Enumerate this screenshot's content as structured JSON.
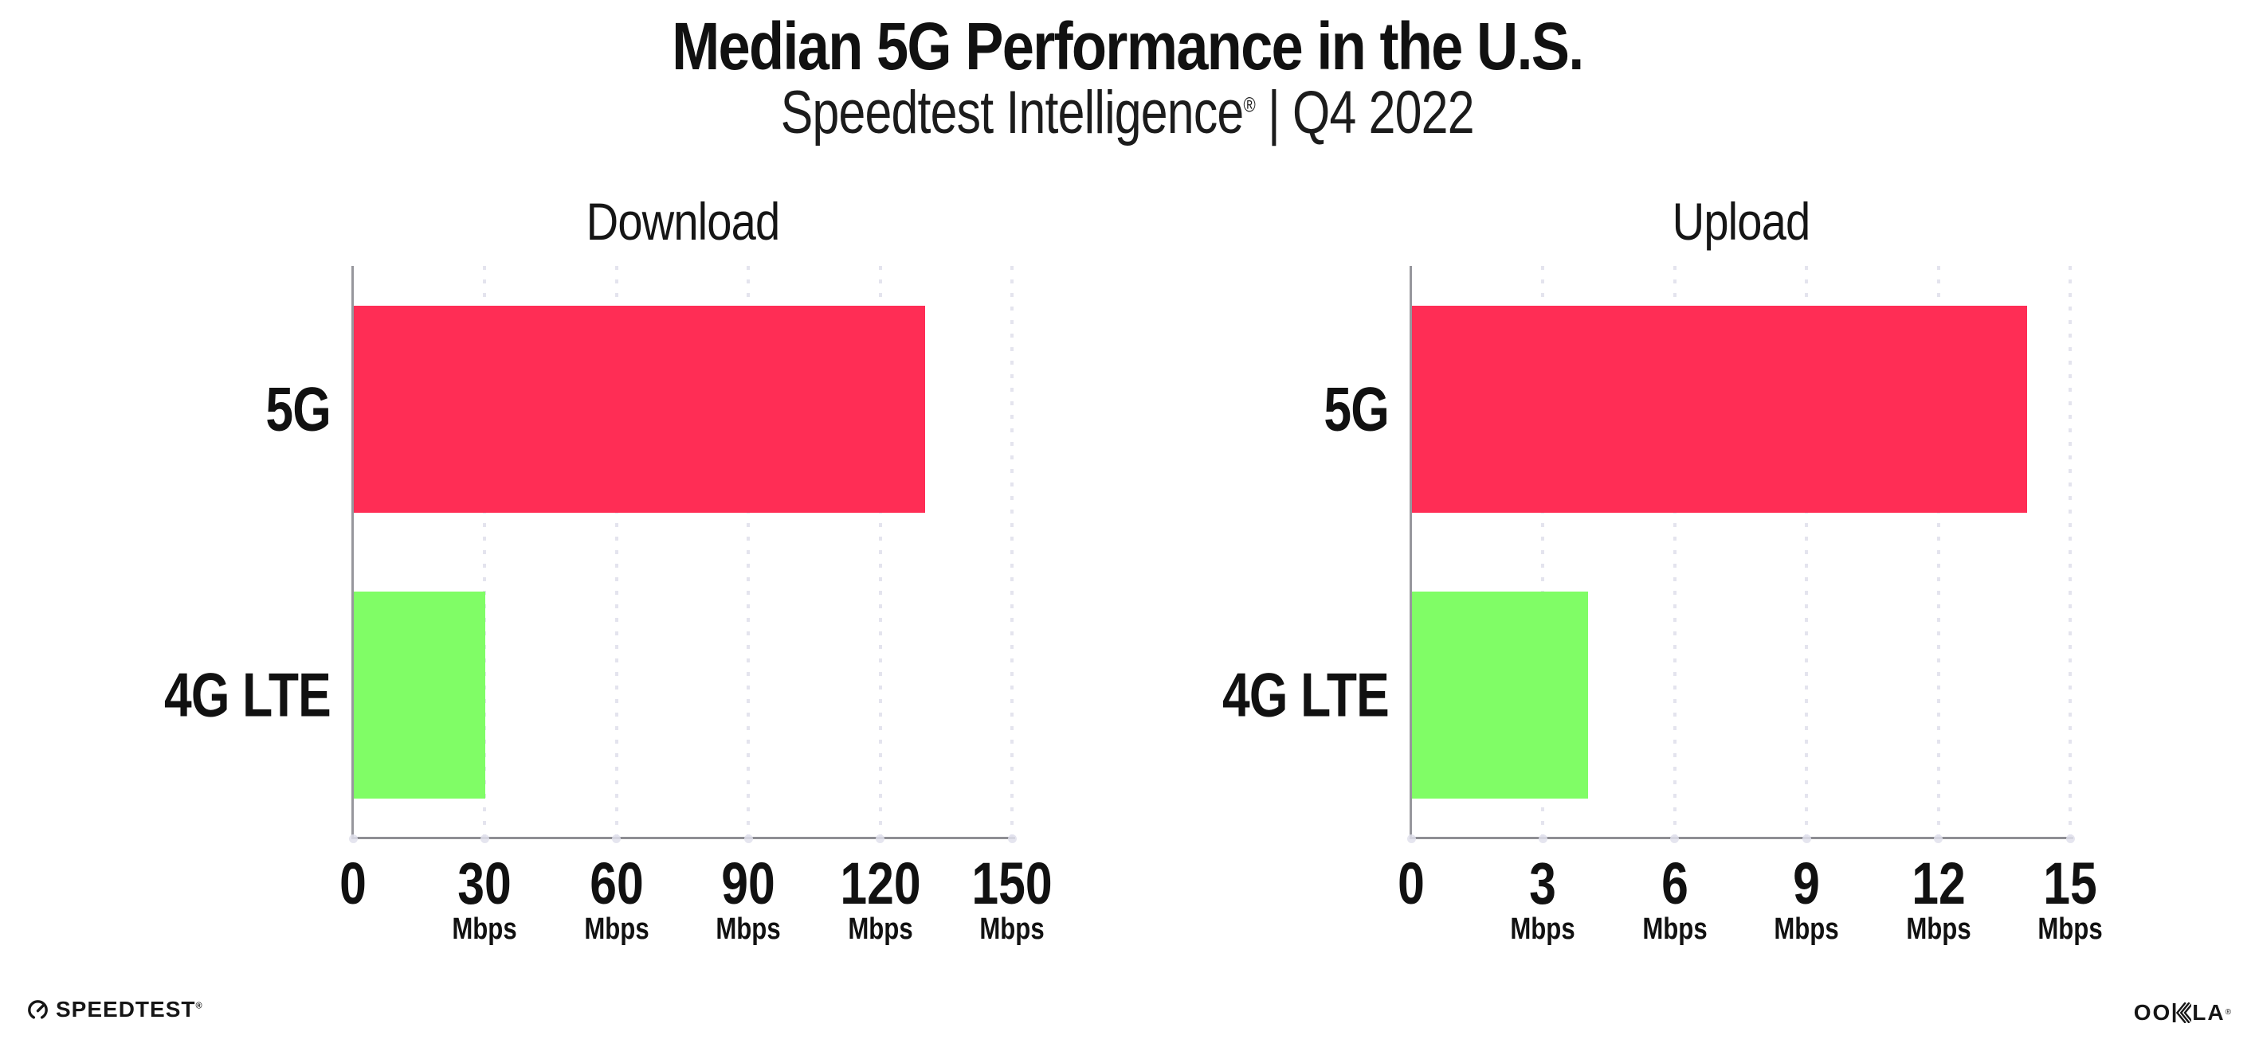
{
  "header": {
    "title": "Median 5G Performance in the U.S.",
    "subtitle_brand": "Speedtest Intelligence",
    "subtitle_reg": "®",
    "subtitle_rest": " | Q4 2022"
  },
  "chart_data": [
    {
      "type": "bar",
      "orientation": "horizontal",
      "title": "Download",
      "categories": [
        "5G",
        "4G LTE"
      ],
      "values": [
        130,
        30
      ],
      "unit": "Mbps",
      "xlim": [
        0,
        150
      ],
      "xticks": [
        0,
        30,
        60,
        90,
        120,
        150
      ],
      "bar_colors": [
        "#ff2d55",
        "#80fd66"
      ],
      "grid": "dotted-vertical",
      "legend": "none"
    },
    {
      "type": "bar",
      "orientation": "horizontal",
      "title": "Upload",
      "categories": [
        "5G",
        "4G LTE"
      ],
      "values": [
        14,
        4
      ],
      "unit": "Mbps",
      "xlim": [
        0,
        15
      ],
      "xticks": [
        0,
        3,
        6,
        9,
        12,
        15
      ],
      "bar_colors": [
        "#ff2d55",
        "#80fd66"
      ],
      "grid": "dotted-vertical",
      "legend": "none"
    }
  ],
  "footer": {
    "speedtest_text": "SPEEDTEST",
    "speedtest_mark": "®",
    "ookla_text_left": "OO",
    "ookla_text_right": "LA",
    "ookla_mark": "®"
  },
  "colors": {
    "bar_5g": "#ff2d55",
    "bar_4g_lte": "#80fd66",
    "axis": "#8e8e94",
    "gridline": "#e4e4ee",
    "text": "#111111"
  }
}
